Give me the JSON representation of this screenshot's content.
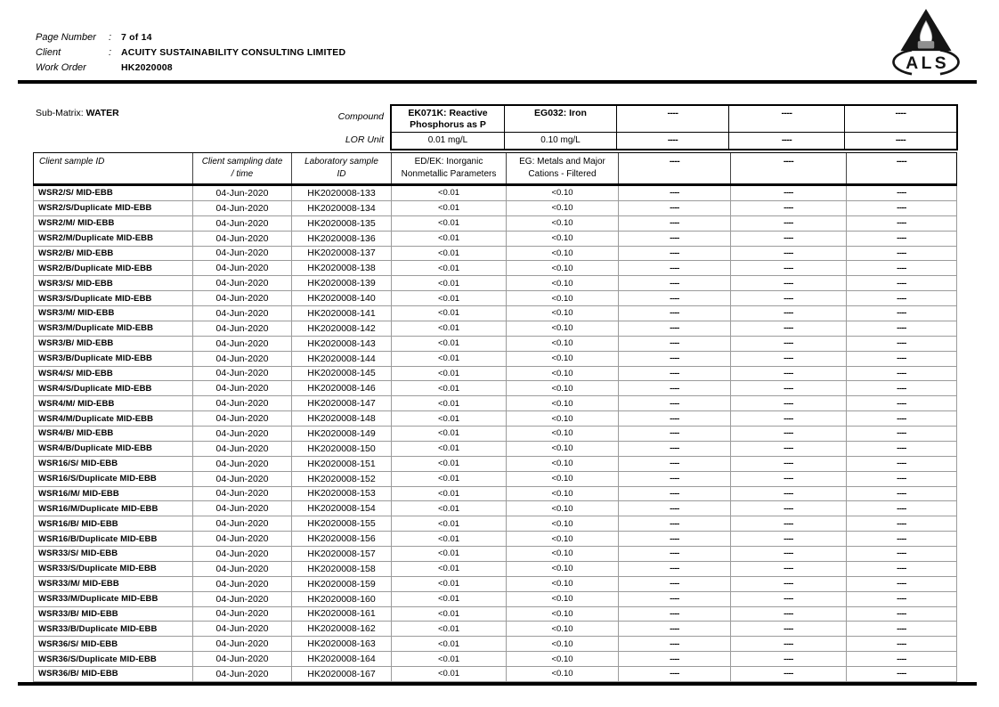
{
  "letterhead": {
    "fields": [
      {
        "label": "Page Number",
        "sep": ":",
        "value": "7 of 14"
      },
      {
        "label": "Client",
        "sep": ":",
        "value": "ACUITY SUSTAINABILITY CONSULTING LIMITED"
      },
      {
        "label": "Work Order",
        "sep": "",
        "value": "HK2020008"
      }
    ],
    "logo_text": "ALS"
  },
  "table": {
    "sub_matrix_label": "Sub-Matrix: ",
    "sub_matrix_value": "WATER",
    "compound_row_label": "Compound",
    "lor_row_label": "LOR Unit",
    "id_columns": [
      {
        "line1": "Client sample ID",
        "line2": ""
      },
      {
        "line1": "Client sampling date",
        "line2": "/ time"
      },
      {
        "line1": "Laboratory sample",
        "line2": "ID"
      }
    ],
    "compound_columns": [
      {
        "name": "EK071K: Reactive Phosphorus as P",
        "lor": "0.01 mg/L",
        "group": "ED/EK: Inorganic Nonmetallic Parameters"
      },
      {
        "name": "EG032: Iron",
        "lor": "0.10 mg/L",
        "group": "EG: Metals and Major Cations - Filtered"
      },
      {
        "name": "----",
        "lor": "----",
        "group": "----"
      },
      {
        "name": "----",
        "lor": "----",
        "group": "----"
      },
      {
        "name": "----",
        "lor": "----",
        "group": "----"
      }
    ],
    "rows": [
      [
        "WSR2/S/ MID-EBB",
        "04-Jun-2020",
        "HK2020008-133",
        "<0.01",
        "<0.10",
        "----",
        "----",
        "----"
      ],
      [
        "WSR2/S/Duplicate MID-EBB",
        "04-Jun-2020",
        "HK2020008-134",
        "<0.01",
        "<0.10",
        "----",
        "----",
        "----"
      ],
      [
        "WSR2/M/ MID-EBB",
        "04-Jun-2020",
        "HK2020008-135",
        "<0.01",
        "<0.10",
        "----",
        "----",
        "----"
      ],
      [
        "WSR2/M/Duplicate MID-EBB",
        "04-Jun-2020",
        "HK2020008-136",
        "<0.01",
        "<0.10",
        "----",
        "----",
        "----"
      ],
      [
        "WSR2/B/ MID-EBB",
        "04-Jun-2020",
        "HK2020008-137",
        "<0.01",
        "<0.10",
        "----",
        "----",
        "----"
      ],
      [
        "WSR2/B/Duplicate MID-EBB",
        "04-Jun-2020",
        "HK2020008-138",
        "<0.01",
        "<0.10",
        "----",
        "----",
        "----"
      ],
      [
        "WSR3/S/ MID-EBB",
        "04-Jun-2020",
        "HK2020008-139",
        "<0.01",
        "<0.10",
        "----",
        "----",
        "----"
      ],
      [
        "WSR3/S/Duplicate MID-EBB",
        "04-Jun-2020",
        "HK2020008-140",
        "<0.01",
        "<0.10",
        "----",
        "----",
        "----"
      ],
      [
        "WSR3/M/ MID-EBB",
        "04-Jun-2020",
        "HK2020008-141",
        "<0.01",
        "<0.10",
        "----",
        "----",
        "----"
      ],
      [
        "WSR3/M/Duplicate MID-EBB",
        "04-Jun-2020",
        "HK2020008-142",
        "<0.01",
        "<0.10",
        "----",
        "----",
        "----"
      ],
      [
        "WSR3/B/ MID-EBB",
        "04-Jun-2020",
        "HK2020008-143",
        "<0.01",
        "<0.10",
        "----",
        "----",
        "----"
      ],
      [
        "WSR3/B/Duplicate MID-EBB",
        "04-Jun-2020",
        "HK2020008-144",
        "<0.01",
        "<0.10",
        "----",
        "----",
        "----"
      ],
      [
        "WSR4/S/ MID-EBB",
        "04-Jun-2020",
        "HK2020008-145",
        "<0.01",
        "<0.10",
        "----",
        "----",
        "----"
      ],
      [
        "WSR4/S/Duplicate MID-EBB",
        "04-Jun-2020",
        "HK2020008-146",
        "<0.01",
        "<0.10",
        "----",
        "----",
        "----"
      ],
      [
        "WSR4/M/ MID-EBB",
        "04-Jun-2020",
        "HK2020008-147",
        "<0.01",
        "<0.10",
        "----",
        "----",
        "----"
      ],
      [
        "WSR4/M/Duplicate MID-EBB",
        "04-Jun-2020",
        "HK2020008-148",
        "<0.01",
        "<0.10",
        "----",
        "----",
        "----"
      ],
      [
        "WSR4/B/ MID-EBB",
        "04-Jun-2020",
        "HK2020008-149",
        "<0.01",
        "<0.10",
        "----",
        "----",
        "----"
      ],
      [
        "WSR4/B/Duplicate MID-EBB",
        "04-Jun-2020",
        "HK2020008-150",
        "<0.01",
        "<0.10",
        "----",
        "----",
        "----"
      ],
      [
        "WSR16/S/ MID-EBB",
        "04-Jun-2020",
        "HK2020008-151",
        "<0.01",
        "<0.10",
        "----",
        "----",
        "----"
      ],
      [
        "WSR16/S/Duplicate MID-EBB",
        "04-Jun-2020",
        "HK2020008-152",
        "<0.01",
        "<0.10",
        "----",
        "----",
        "----"
      ],
      [
        "WSR16/M/ MID-EBB",
        "04-Jun-2020",
        "HK2020008-153",
        "<0.01",
        "<0.10",
        "----",
        "----",
        "----"
      ],
      [
        "WSR16/M/Duplicate MID-EBB",
        "04-Jun-2020",
        "HK2020008-154",
        "<0.01",
        "<0.10",
        "----",
        "----",
        "----"
      ],
      [
        "WSR16/B/ MID-EBB",
        "04-Jun-2020",
        "HK2020008-155",
        "<0.01",
        "<0.10",
        "----",
        "----",
        "----"
      ],
      [
        "WSR16/B/Duplicate MID-EBB",
        "04-Jun-2020",
        "HK2020008-156",
        "<0.01",
        "<0.10",
        "----",
        "----",
        "----"
      ],
      [
        "WSR33/S/ MID-EBB",
        "04-Jun-2020",
        "HK2020008-157",
        "<0.01",
        "<0.10",
        "----",
        "----",
        "----"
      ],
      [
        "WSR33/S/Duplicate MID-EBB",
        "04-Jun-2020",
        "HK2020008-158",
        "<0.01",
        "<0.10",
        "----",
        "----",
        "----"
      ],
      [
        "WSR33/M/ MID-EBB",
        "04-Jun-2020",
        "HK2020008-159",
        "<0.01",
        "<0.10",
        "----",
        "----",
        "----"
      ],
      [
        "WSR33/M/Duplicate MID-EBB",
        "04-Jun-2020",
        "HK2020008-160",
        "<0.01",
        "<0.10",
        "----",
        "----",
        "----"
      ],
      [
        "WSR33/B/ MID-EBB",
        "04-Jun-2020",
        "HK2020008-161",
        "<0.01",
        "<0.10",
        "----",
        "----",
        "----"
      ],
      [
        "WSR33/B/Duplicate MID-EBB",
        "04-Jun-2020",
        "HK2020008-162",
        "<0.01",
        "<0.10",
        "----",
        "----",
        "----"
      ],
      [
        "WSR36/S/ MID-EBB",
        "04-Jun-2020",
        "HK2020008-163",
        "<0.01",
        "<0.10",
        "----",
        "----",
        "----"
      ],
      [
        "WSR36/S/Duplicate MID-EBB",
        "04-Jun-2020",
        "HK2020008-164",
        "<0.01",
        "<0.10",
        "----",
        "----",
        "----"
      ],
      [
        "WSR36/B/ MID-EBB",
        "04-Jun-2020",
        "HK2020008-167",
        "<0.01",
        "<0.10",
        "----",
        "----",
        "----"
      ]
    ]
  },
  "colors": {
    "ink": "#000000",
    "grid_light": "#9b9b9b",
    "grid_dark": "#000000",
    "background": "#ffffff"
  }
}
